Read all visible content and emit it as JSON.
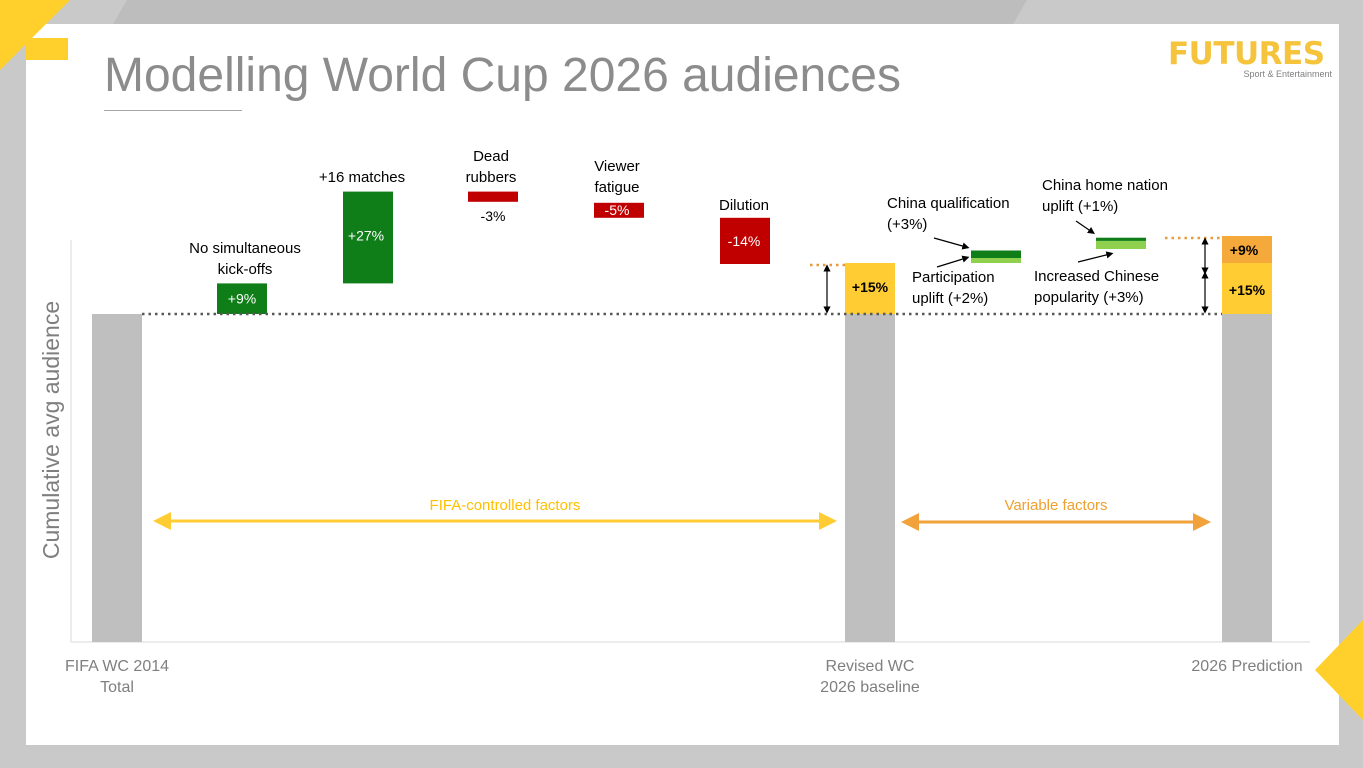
{
  "title": "Modelling World Cup 2026 audiences",
  "logo": {
    "name": "FUTURES",
    "tagline": "Sport & Entertainment"
  },
  "colors": {
    "total": "#bfbfbf",
    "increase": "#0f7d18",
    "decrease": "#c00000",
    "baseline_uplift": "#ffcc33",
    "variable_uplift": "#f6a93b",
    "fifa_arrow": "#ffcc33",
    "variable_arrow": "#f1a23a",
    "light_green": "#8fd14f"
  },
  "chart_data": {
    "type": "waterfall",
    "ylabel": "Cumulative avg audience",
    "steps": [
      {
        "id": "wc2014",
        "kind": "total",
        "label_lines": [
          "FIFA WC 2014",
          "Total"
        ],
        "value": 100
      },
      {
        "id": "simultaneous",
        "kind": "delta",
        "label_lines": [
          "No simultaneous",
          "kick-offs"
        ],
        "value": 9,
        "display": "+9%"
      },
      {
        "id": "matches",
        "kind": "delta",
        "label_lines": [
          "+16 matches"
        ],
        "value": 27,
        "display": "+27%"
      },
      {
        "id": "dead",
        "kind": "delta",
        "label_lines": [
          "Dead",
          "rubbers"
        ],
        "value": -3,
        "display": "-3%"
      },
      {
        "id": "fatigue",
        "kind": "delta",
        "label_lines": [
          "Viewer",
          "fatigue"
        ],
        "value": -5,
        "display": "-5%"
      },
      {
        "id": "dilution",
        "kind": "delta",
        "label_lines": [
          "Dilution"
        ],
        "value": -14,
        "display": "-14%"
      },
      {
        "id": "baseline",
        "kind": "total",
        "label_lines": [
          "Revised WC",
          "2026 baseline"
        ],
        "value": 115,
        "uplift": 15,
        "uplift_display": "+15%"
      },
      {
        "id": "china_qual",
        "kind": "delta",
        "label_lines": [
          "China qualification",
          "(+3%)"
        ],
        "value": 3
      },
      {
        "id": "participation",
        "kind": "delta",
        "label_lines": [
          "Participation",
          "uplift (+2%)"
        ],
        "value": 2
      },
      {
        "id": "china_home",
        "kind": "delta",
        "label_lines": [
          "China home nation",
          "uplift (+1%)"
        ],
        "value": 1
      },
      {
        "id": "popularity",
        "kind": "delta",
        "label_lines": [
          "Increased Chinese",
          "popularity (+3%)"
        ],
        "value": 3
      },
      {
        "id": "prediction",
        "kind": "total",
        "label_lines": [
          "2026 Prediction"
        ],
        "value": 124,
        "segments": [
          {
            "value": 15,
            "display": "+15%"
          },
          {
            "value": 9,
            "display": "+9%"
          }
        ]
      }
    ],
    "ranges": [
      {
        "label": "FIFA-controlled factors"
      },
      {
        "label": "Variable factors"
      }
    ]
  }
}
